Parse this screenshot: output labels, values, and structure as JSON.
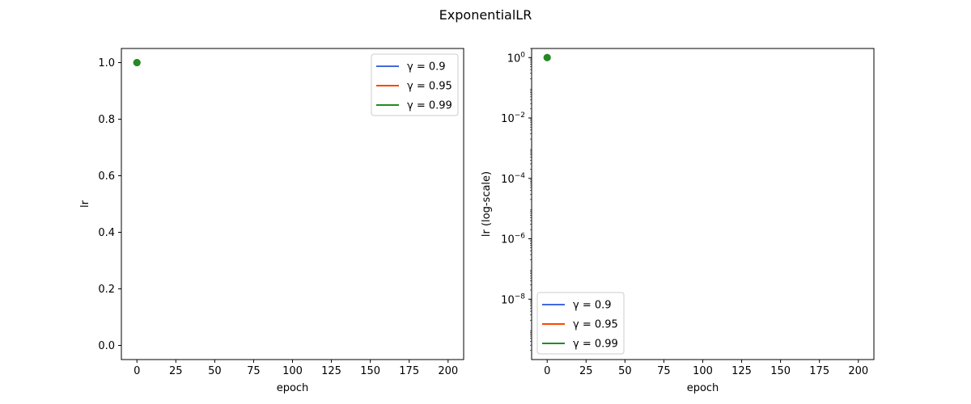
{
  "figure": {
    "title": "ExponentialLR"
  },
  "colors": {
    "gamma_0_9": "#4169e1",
    "gamma_0_95": "#ff4500",
    "gamma_0_99": "#228b22"
  },
  "chart_data": [
    {
      "type": "line",
      "xlabel": "epoch",
      "ylabel": "lr",
      "xlim": [
        -10,
        210
      ],
      "ylim": [
        -0.05,
        1.05
      ],
      "x_ticks": [
        0,
        25,
        50,
        75,
        100,
        125,
        150,
        175,
        200
      ],
      "x_tick_labels": [
        "0",
        "25",
        "50",
        "75",
        "100",
        "125",
        "150",
        "175",
        "200"
      ],
      "y_ticks": [
        0.0,
        0.2,
        0.4,
        0.6,
        0.8,
        1.0
      ],
      "y_tick_labels": [
        "0.0",
        "0.2",
        "0.4",
        "0.6",
        "0.8",
        "1.0"
      ],
      "y_scale": "linear",
      "legend_position": "top-right",
      "series": [
        {
          "name": "γ = 0.9",
          "color": "#4169e1",
          "x": [
            0
          ],
          "y": [
            1.0
          ]
        },
        {
          "name": "γ = 0.95",
          "color": "#ff4500",
          "x": [
            0
          ],
          "y": [
            1.0
          ]
        },
        {
          "name": "γ = 0.99",
          "color": "#228b22",
          "x": [
            0
          ],
          "y": [
            1.0
          ]
        }
      ]
    },
    {
      "type": "line",
      "xlabel": "epoch",
      "ylabel": "lr (log-scale)",
      "xlim": [
        -10,
        210
      ],
      "ylim": [
        1e-10,
        2
      ],
      "x_ticks": [
        0,
        25,
        50,
        75,
        100,
        125,
        150,
        175,
        200
      ],
      "x_tick_labels": [
        "0",
        "25",
        "50",
        "75",
        "100",
        "125",
        "150",
        "175",
        "200"
      ],
      "y_ticks": [
        1,
        0.01,
        0.0001,
        1e-06,
        1e-08
      ],
      "y_tick_labels": [
        {
          "base": "10",
          "exp": "0"
        },
        {
          "base": "10",
          "exp": "−2"
        },
        {
          "base": "10",
          "exp": "−4"
        },
        {
          "base": "10",
          "exp": "−6"
        },
        {
          "base": "10",
          "exp": "−8"
        }
      ],
      "y_scale": "log",
      "legend_position": "bottom-left",
      "series": [
        {
          "name": "γ = 0.9",
          "color": "#4169e1",
          "x": [
            0
          ],
          "y": [
            1.0
          ]
        },
        {
          "name": "γ = 0.95",
          "color": "#ff4500",
          "x": [
            0
          ],
          "y": [
            1.0
          ]
        },
        {
          "name": "γ = 0.99",
          "color": "#228b22",
          "x": [
            0
          ],
          "y": [
            1.0
          ]
        }
      ]
    }
  ]
}
